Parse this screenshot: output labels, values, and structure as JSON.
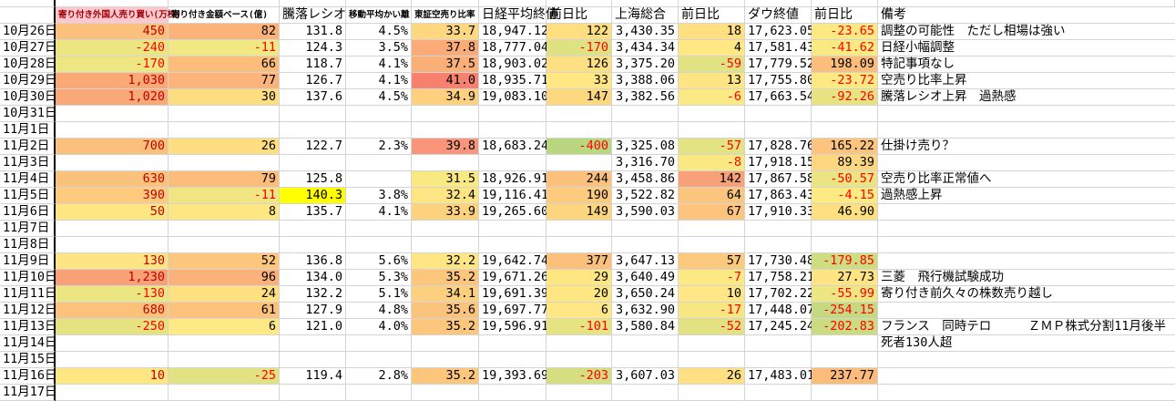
{
  "header": {
    "date": "",
    "cols": [
      "寄り付き外国人売り買い(万株)",
      "寄り付き金額ベース(億)",
      "騰落レシオ",
      "移動平均かい離",
      "東証空売り比率",
      "日経平均終値",
      "前日比",
      "上海総合",
      "前日比",
      "ダウ終値",
      "前日比",
      "備考"
    ],
    "first_col_bg": "#ffc7ce",
    "first_col_color": "#9c0006"
  },
  "colors": {
    "negative": "#ff0000",
    "foreign_positive": "#c00000",
    "grid": "#d4d4d4"
  },
  "rows": [
    {
      "date": "10月26日",
      "cells": [
        "450",
        "82",
        "131.8",
        "4.5%",
        "33.7",
        "18,947.12",
        "122",
        "3,430.35",
        "18",
        "17,623.05",
        "-23.65",
        "調整の可能性　ただし相場は強い"
      ],
      "bg": [
        "#fbc07c",
        "#fbb37a",
        "",
        "",
        "#fed880",
        "",
        "#fede81",
        "",
        "#fee082",
        "",
        "#fde983",
        ""
      ]
    },
    {
      "date": "10月27日",
      "cells": [
        "-240",
        "-11",
        "124.3",
        "3.5%",
        "37.8",
        "18,777.04",
        "-170",
        "3,434.34",
        "4",
        "17,581.43",
        "-41.62",
        "日経小幅調整"
      ],
      "bg": [
        "#ebe582",
        "#f1e783",
        "",
        "",
        "#fbab78",
        "",
        "#dfe283",
        "",
        "#ffe884",
        "",
        "#f8e983",
        ""
      ]
    },
    {
      "date": "10月28日",
      "cells": [
        "-170",
        "66",
        "118.7",
        "4.1%",
        "37.5",
        "18,903.02",
        "126",
        "3,375.20",
        "-59",
        "17,779.52",
        "198.09",
        "特記事項なし"
      ],
      "bg": [
        "#eee683",
        "#fcbd7b",
        "",
        "",
        "#fbaf78",
        "",
        "#fedf81",
        "",
        "#e0e283",
        "",
        "#fcbd7b",
        ""
      ]
    },
    {
      "date": "10月29日",
      "cells": [
        "1,030",
        "77",
        "126.7",
        "4.1%",
        "41.0",
        "18,935.71",
        "33",
        "3,388.06",
        "13",
        "17,755.80",
        "-23.72",
        "空売り比率上昇"
      ],
      "bg": [
        "#f9a876",
        "#fcb47a",
        "",
        "",
        "#f8806e",
        "",
        "#ffe784",
        "",
        "#fee583",
        "",
        "#fde983",
        ""
      ]
    },
    {
      "date": "10月30日",
      "cells": [
        "1,020",
        "30",
        "137.6",
        "4.5%",
        "34.9",
        "19,083.10",
        "147",
        "3,382.56",
        "-6",
        "17,663.54",
        "-92.26",
        "騰落レシオ上昇　過熱感"
      ],
      "bg": [
        "#f9a977",
        "#fedc80",
        "",
        "",
        "#fdd07f",
        "",
        "#fdd880",
        "",
        "#fbe983",
        "",
        "#e8e382",
        ""
      ]
    },
    {
      "date": "10月31日",
      "cells": [
        "",
        "",
        "",
        "",
        "",
        "",
        "",
        "",
        "",
        "",
        "",
        ""
      ],
      "bg": [
        "",
        "",
        "",
        "",
        "",
        "",
        "",
        "",
        "",
        "",
        "",
        ""
      ]
    },
    {
      "date": "11月1日",
      "cells": [
        "",
        "",
        "",
        "",
        "",
        "",
        "",
        "",
        "",
        "",
        "",
        ""
      ],
      "bg": [
        "",
        "",
        "",
        "",
        "",
        "",
        "",
        "",
        "",
        "",
        "",
        ""
      ]
    },
    {
      "date": "11月2日",
      "cells": [
        "700",
        "26",
        "122.7",
        "2.3%",
        "39.8",
        "18,683.24",
        "-400",
        "3,325.08",
        "-57",
        "17,828.76",
        "165.22",
        "仕掛け売り？"
      ],
      "bg": [
        "#fbc07c",
        "#fede81",
        "",
        "",
        "#f9957a",
        "",
        "#b9d780",
        "",
        "#e3e383",
        "",
        "#fcc47c",
        ""
      ]
    },
    {
      "date": "11月3日",
      "cells": [
        "",
        "",
        "",
        "",
        "",
        "",
        "",
        "3,316.70",
        "-8",
        "17,918.15",
        "89.39",
        ""
      ],
      "bg": [
        "",
        "",
        "",
        "",
        "",
        "",
        "",
        "",
        "#fae983",
        "",
        "#fdd680",
        ""
      ]
    },
    {
      "date": "11月4日",
      "cells": [
        "630",
        "79",
        "125.8",
        "",
        "31.5",
        "18,926.91",
        "244",
        "3,458.86",
        "142",
        "17,867.58",
        "-50.57",
        "空売り比率正常値へ"
      ],
      "bg": [
        "#fbc27c",
        "#fcbd7b",
        "",
        "",
        "#f8e983",
        "",
        "#fcc17c",
        "",
        "#f8a077",
        "",
        "#ebe483",
        ""
      ]
    },
    {
      "date": "11月5日",
      "cells": [
        "390",
        "-11",
        "140.3",
        "3.8%",
        "32.4",
        "19,116.41",
        "190",
        "3,522.82",
        "64",
        "17,863.43",
        "-4.15",
        "過熱感上昇"
      ],
      "bg": [
        "#fdca7e",
        "#f1e583",
        "#ffff00",
        "",
        "#fde583",
        "",
        "#fdcb7e",
        "",
        "#fcc57d",
        "",
        "#fdea83",
        ""
      ]
    },
    {
      "date": "11月6日",
      "cells": [
        "50",
        "8",
        "135.7",
        "4.1%",
        "33.9",
        "19,265.60",
        "149",
        "3,590.03",
        "67",
        "17,910.33",
        "46.90",
        ""
      ],
      "bg": [
        "#fee683",
        "#fee683",
        "",
        "",
        "#fdd27f",
        "",
        "#fdd57f",
        "",
        "#fcc47c",
        "",
        "#fee081",
        ""
      ]
    },
    {
      "date": "11月7日",
      "cells": [
        "",
        "",
        "",
        "",
        "",
        "",
        "",
        "",
        "",
        "",
        "",
        ""
      ],
      "bg": [
        "",
        "",
        "",
        "",
        "",
        "",
        "",
        "",
        "",
        "",
        "",
        ""
      ]
    },
    {
      "date": "11月8日",
      "cells": [
        "",
        "",
        "",
        "",
        "",
        "",
        "",
        "",
        "",
        "",
        "",
        ""
      ],
      "bg": [
        "",
        "",
        "",
        "",
        "",
        "",
        "",
        "",
        "",
        "",
        "",
        ""
      ]
    },
    {
      "date": "11月9日",
      "cells": [
        "130",
        "52",
        "136.8",
        "5.6%",
        "32.2",
        "19,642.74",
        "377",
        "3,647.13",
        "57",
        "17,730.48",
        "-179.85",
        ""
      ],
      "bg": [
        "#fee583",
        "#fdc87d",
        "",
        "",
        "#fee783",
        "",
        "#fbc07c",
        "",
        "#fdc97d",
        "",
        "#cfdd81",
        ""
      ]
    },
    {
      "date": "11月10日",
      "cells": [
        "1,230",
        "96",
        "134.0",
        "5.3%",
        "35.2",
        "19,671.26",
        "29",
        "3,640.49",
        "-7",
        "17,758.21",
        "27.73",
        "三菱　飛行機試験成功"
      ],
      "bg": [
        "#f9a176",
        "#fbb27a",
        "",
        "",
        "#fcc77d",
        "",
        "#fee683",
        "",
        "#fde983",
        "",
        "#fee482",
        ""
      ]
    },
    {
      "date": "11月11日",
      "cells": [
        "-130",
        "24",
        "132.2",
        "5.1%",
        "34.1",
        "19,691.39",
        "20",
        "3,650.24",
        "10",
        "17,702.22",
        "-55.99",
        "寄り付き前久々の株数売り越し"
      ],
      "bg": [
        "#ebe582",
        "#fee080",
        "",
        "",
        "#fcd07e",
        "",
        "#fee683",
        "",
        "#fee784",
        "",
        "#eee583",
        ""
      ]
    },
    {
      "date": "11月12日",
      "cells": [
        "680",
        "61",
        "127.9",
        "4.8%",
        "35.6",
        "19,697.77",
        "6",
        "3,632.90",
        "-17",
        "17,448.07",
        "-254.15",
        ""
      ],
      "bg": [
        "#fbc27c",
        "#fcc27c",
        "",
        "",
        "#fbc47c",
        "",
        "#fee784",
        "",
        "#f6e783",
        "",
        "#c4d980",
        ""
      ]
    },
    {
      "date": "11月13日",
      "cells": [
        "-250",
        "6",
        "121.0",
        "4.0%",
        "35.2",
        "19,596.91",
        "-101",
        "3,580.84",
        "-52",
        "17,245.24",
        "-202.83",
        "フランス　同時テロ　　　ＺＭＰ株式分割11月後半"
      ],
      "bg": [
        "#e5e282",
        "#feea84",
        "",
        "",
        "#fcc67d",
        "",
        "#e5e382",
        "",
        "#e3e283",
        "",
        "#cbdb81",
        ""
      ]
    },
    {
      "date": "11月14日",
      "cells": [
        "",
        "",
        "",
        "",
        "",
        "",
        "",
        "",
        "",
        "",
        "",
        "死者130人超"
      ],
      "bg": [
        "",
        "",
        "",
        "",
        "",
        "",
        "",
        "",
        "",
        "",
        "",
        ""
      ]
    },
    {
      "date": "11月15日",
      "cells": [
        "",
        "",
        "",
        "",
        "",
        "",
        "",
        "",
        "",
        "",
        "",
        ""
      ],
      "bg": [
        "",
        "",
        "",
        "",
        "",
        "",
        "",
        "",
        "",
        "",
        "",
        ""
      ]
    },
    {
      "date": "11月16日",
      "cells": [
        "10",
        "-25",
        "119.4",
        "2.8%",
        "35.2",
        "19,393.69",
        "-203",
        "3,607.03",
        "26",
        "17,483.01",
        "237.77",
        ""
      ],
      "bg": [
        "#fee683",
        "#e3e282",
        "",
        "",
        "#fcc67d",
        "",
        "#d5df82",
        "",
        "#fee082",
        "",
        "#fbbb7b",
        ""
      ]
    },
    {
      "date": "11月17日",
      "cells": [
        "",
        "",
        "",
        "",
        "",
        "",
        "",
        "",
        "",
        "",
        "",
        ""
      ],
      "bg": [
        "",
        "",
        "",
        "",
        "",
        "",
        "",
        "",
        "",
        "",
        "",
        ""
      ]
    }
  ]
}
